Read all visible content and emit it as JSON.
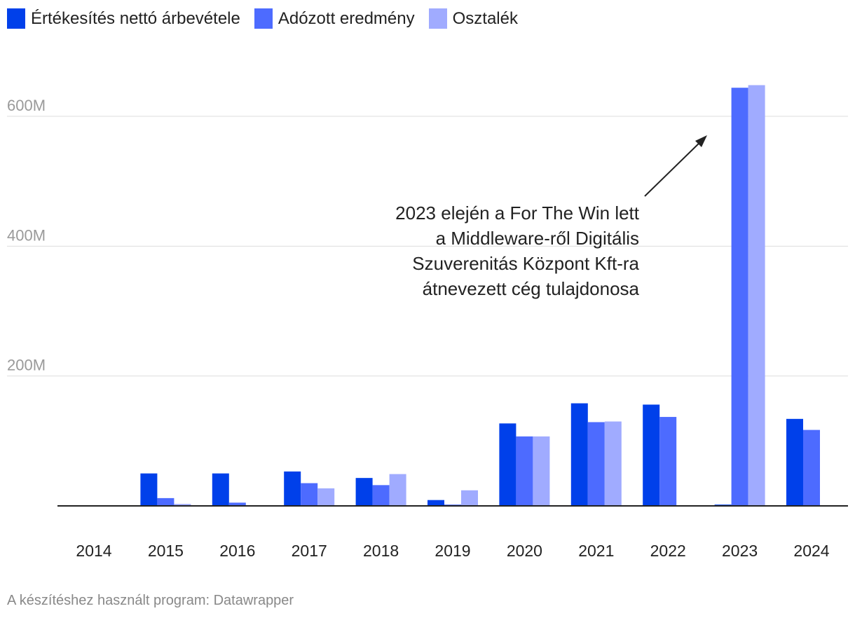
{
  "chart_data": {
    "type": "bar",
    "categories": [
      "2014",
      "2015",
      "2016",
      "2017",
      "2018",
      "2019",
      "2020",
      "2021",
      "2022",
      "2023",
      "2024"
    ],
    "series": [
      {
        "name": "Értékesítés nettó árbevétele",
        "color": "#0040ea",
        "values": [
          0,
          50,
          50,
          53,
          43,
          9,
          127,
          158,
          156,
          2,
          134
        ]
      },
      {
        "name": "Adózott eredmény",
        "color": "#4d6bff",
        "values": [
          0,
          12,
          5,
          35,
          32,
          2,
          107,
          129,
          137,
          644,
          117
        ]
      },
      {
        "name": "Osztalék",
        "color": "#a0abff",
        "values": [
          0,
          3,
          0,
          27,
          49,
          24,
          107,
          130,
          0,
          648,
          0
        ]
      }
    ],
    "y_ticks": [
      {
        "value": 200,
        "label": "200M"
      },
      {
        "value": 400,
        "label": "400M"
      },
      {
        "value": 600,
        "label": "600M"
      }
    ],
    "ylim": [
      0,
      720
    ],
    "grid": true,
    "legend_position": "top-left",
    "annotation": {
      "lines": [
        "2023 elején a For The Win lett",
        "a Middleware-ről Digitális",
        "Szuverenitás Központ Kft-ra",
        "átnevezett cég tulajdonosa"
      ],
      "target_category": "2023"
    }
  },
  "footer": "A készítéshez használt program: Datawrapper"
}
